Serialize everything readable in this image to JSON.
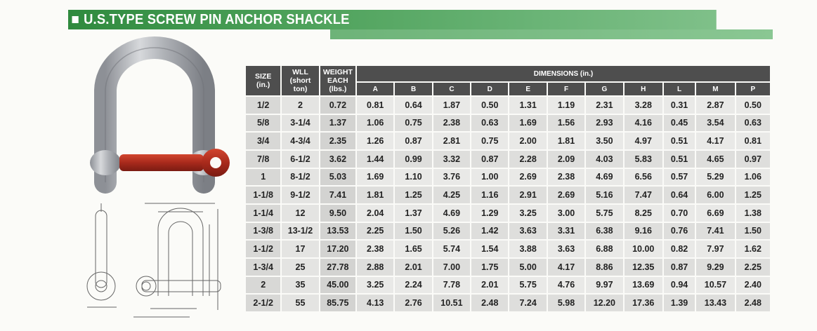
{
  "page": {
    "title": "U.S.TYPE SCREW PIN ANCHOR SHACKLE",
    "accent_color": "#3a8f47"
  },
  "table": {
    "headers": {
      "size": [
        "SIZE",
        "(in.)"
      ],
      "wll": [
        "WLL",
        "(short",
        "ton)"
      ],
      "weight": [
        "WEIGHT",
        "EACH",
        "(lbs.)"
      ],
      "dimensions": "DIMENSIONS (in.)",
      "dim_letters": [
        "A",
        "B",
        "C",
        "D",
        "E",
        "F",
        "G",
        "H",
        "L",
        "M",
        "P"
      ]
    },
    "rows": [
      [
        "1/2",
        "2",
        "0.72",
        "0.81",
        "0.64",
        "1.87",
        "0.50",
        "1.31",
        "1.19",
        "2.31",
        "3.28",
        "0.31",
        "2.87",
        "0.50"
      ],
      [
        "5/8",
        "3-1/4",
        "1.37",
        "1.06",
        "0.75",
        "2.38",
        "0.63",
        "1.69",
        "1.56",
        "2.93",
        "4.16",
        "0.45",
        "3.54",
        "0.63"
      ],
      [
        "3/4",
        "4-3/4",
        "2.35",
        "1.26",
        "0.87",
        "2.81",
        "0.75",
        "2.00",
        "1.81",
        "3.50",
        "4.97",
        "0.51",
        "4.17",
        "0.81"
      ],
      [
        "7/8",
        "6-1/2",
        "3.62",
        "1.44",
        "0.99",
        "3.32",
        "0.87",
        "2.28",
        "2.09",
        "4.03",
        "5.83",
        "0.51",
        "4.65",
        "0.97"
      ],
      [
        "1",
        "8-1/2",
        "5.03",
        "1.69",
        "1.10",
        "3.76",
        "1.00",
        "2.69",
        "2.38",
        "4.69",
        "6.56",
        "0.57",
        "5.29",
        "1.06"
      ],
      [
        "1-1/8",
        "9-1/2",
        "7.41",
        "1.81",
        "1.25",
        "4.25",
        "1.16",
        "2.91",
        "2.69",
        "5.16",
        "7.47",
        "0.64",
        "6.00",
        "1.25"
      ],
      [
        "1-1/4",
        "12",
        "9.50",
        "2.04",
        "1.37",
        "4.69",
        "1.29",
        "3.25",
        "3.00",
        "5.75",
        "8.25",
        "0.70",
        "6.69",
        "1.38"
      ],
      [
        "1-3/8",
        "13-1/2",
        "13.53",
        "2.25",
        "1.50",
        "5.26",
        "1.42",
        "3.63",
        "3.31",
        "6.38",
        "9.16",
        "0.76",
        "7.41",
        "1.50"
      ],
      [
        "1-1/2",
        "17",
        "17.20",
        "2.38",
        "1.65",
        "5.74",
        "1.54",
        "3.88",
        "3.63",
        "6.88",
        "10.00",
        "0.82",
        "7.97",
        "1.62"
      ],
      [
        "1-3/4",
        "25",
        "27.78",
        "2.88",
        "2.01",
        "7.00",
        "1.75",
        "5.00",
        "4.17",
        "8.86",
        "12.35",
        "0.87",
        "9.29",
        "2.25"
      ],
      [
        "2",
        "35",
        "45.00",
        "3.25",
        "2.24",
        "7.78",
        "2.01",
        "5.75",
        "4.76",
        "9.97",
        "13.69",
        "0.94",
        "10.57",
        "2.40"
      ],
      [
        "2-1/2",
        "55",
        "85.75",
        "4.13",
        "2.76",
        "10.51",
        "2.48",
        "7.24",
        "5.98",
        "12.20",
        "17.36",
        "1.39",
        "13.43",
        "2.48"
      ]
    ]
  }
}
